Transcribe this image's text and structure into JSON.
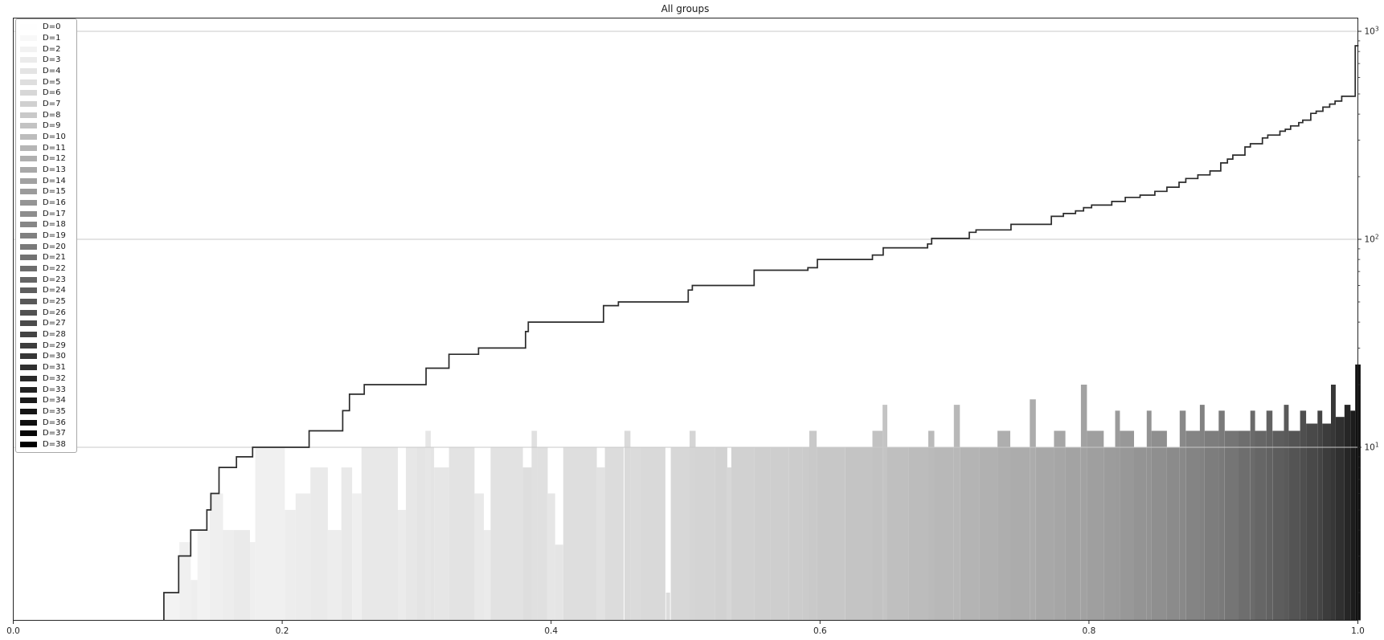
{
  "chart": {
    "title": "All groups"
  },
  "chart_data": {
    "type": "line+bar",
    "title": "All groups",
    "x_axis": {
      "range": [
        0.0,
        1.0
      ],
      "tick_labels": [
        "0.0",
        "0.2",
        "0.4",
        "0.6",
        "0.8",
        "1.0"
      ],
      "tick_values": [
        0.0,
        0.2,
        0.4,
        0.6,
        0.8,
        1.0
      ]
    },
    "y_axis": {
      "scale": "log",
      "side": "right",
      "major_tick_base": "10",
      "major_ticks": [
        {
          "value": 1000,
          "exp": "3"
        },
        {
          "value": 100,
          "exp": "2"
        },
        {
          "value": 10,
          "exp": "1"
        }
      ],
      "minor_tick_values": [
        2,
        3,
        4,
        5,
        6,
        7,
        8,
        9,
        20,
        30,
        40,
        50,
        60,
        70,
        80,
        90,
        200,
        300,
        400,
        500,
        600,
        700,
        800,
        900
      ],
      "range_approx": [
        1.48,
        1170
      ]
    },
    "grid": {
      "on": true,
      "values": [
        10,
        100,
        1000
      ],
      "color": "#c9c9c9"
    },
    "curve": {
      "name": "cumulative-count-step-line",
      "color": "#2b2b2b",
      "steps": [
        [
          0.112,
          2
        ],
        [
          0.123,
          3
        ],
        [
          0.132,
          4
        ],
        [
          0.144,
          5
        ],
        [
          0.147,
          6
        ],
        [
          0.153,
          8
        ],
        [
          0.166,
          9
        ],
        [
          0.178,
          10
        ],
        [
          0.22,
          12
        ],
        [
          0.245,
          15
        ],
        [
          0.25,
          18
        ],
        [
          0.261,
          20
        ],
        [
          0.307,
          24
        ],
        [
          0.324,
          28
        ],
        [
          0.346,
          30
        ],
        [
          0.381,
          36
        ],
        [
          0.383,
          40
        ],
        [
          0.439,
          48
        ],
        [
          0.45,
          50
        ],
        [
          0.502,
          57
        ],
        [
          0.505,
          60
        ],
        [
          0.551,
          71
        ],
        [
          0.591,
          73
        ],
        [
          0.598,
          80
        ],
        [
          0.639,
          84
        ],
        [
          0.647,
          91
        ],
        [
          0.68,
          95
        ],
        [
          0.683,
          101
        ],
        [
          0.711,
          108
        ],
        [
          0.716,
          111
        ],
        [
          0.742,
          118
        ],
        [
          0.772,
          129
        ],
        [
          0.781,
          133
        ],
        [
          0.79,
          137
        ],
        [
          0.796,
          142
        ],
        [
          0.802,
          146
        ],
        [
          0.817,
          152
        ],
        [
          0.827,
          159
        ],
        [
          0.838,
          163
        ],
        [
          0.849,
          170
        ],
        [
          0.858,
          178
        ],
        [
          0.867,
          188
        ],
        [
          0.872,
          196
        ],
        [
          0.881,
          204
        ],
        [
          0.89,
          213
        ],
        [
          0.898,
          233
        ],
        [
          0.903,
          243
        ],
        [
          0.907,
          254
        ],
        [
          0.916,
          278
        ],
        [
          0.92,
          288
        ],
        [
          0.929,
          307
        ],
        [
          0.933,
          317
        ],
        [
          0.942,
          331
        ],
        [
          0.946,
          338
        ],
        [
          0.95,
          351
        ],
        [
          0.956,
          364
        ],
        [
          0.959,
          374
        ],
        [
          0.965,
          403
        ],
        [
          0.969,
          413
        ],
        [
          0.974,
          432
        ],
        [
          0.979,
          447
        ],
        [
          0.983,
          462
        ],
        [
          0.988,
          487
        ],
        [
          0.998,
          852
        ],
        [
          1.0,
          860
        ]
      ]
    },
    "bars": {
      "columns": [
        "x",
        "width",
        "count",
        "gray"
      ],
      "rows": [
        [
          0.112,
          0.0115,
          2,
          243
        ],
        [
          0.1235,
          0.0085,
          3.5,
          240
        ],
        [
          0.132,
          0.005,
          2.3,
          238
        ],
        [
          0.137,
          0.009,
          4,
          242
        ],
        [
          0.146,
          0.01,
          6,
          239
        ],
        [
          0.156,
          0.008,
          4,
          237
        ],
        [
          0.164,
          0.012,
          4,
          234
        ],
        [
          0.176,
          0.004,
          3.5,
          239
        ],
        [
          0.18,
          0.022,
          10,
          240
        ],
        [
          0.202,
          0.008,
          5,
          237
        ],
        [
          0.21,
          0.011,
          6,
          236
        ],
        [
          0.221,
          0.013,
          8,
          234
        ],
        [
          0.234,
          0.01,
          4,
          237
        ],
        [
          0.244,
          0.008,
          8,
          233
        ],
        [
          0.252,
          0.007,
          6,
          239
        ],
        [
          0.259,
          0.027,
          10,
          232
        ],
        [
          0.286,
          0.006,
          5,
          235
        ],
        [
          0.292,
          0.008,
          10,
          231
        ],
        [
          0.3,
          0.013,
          10,
          228
        ],
        [
          0.3065,
          0.004,
          12,
          230
        ],
        [
          0.313,
          0.011,
          8,
          230
        ],
        [
          0.324,
          0.019,
          10,
          227
        ],
        [
          0.343,
          0.007,
          6,
          233
        ],
        [
          0.35,
          0.005,
          4,
          235
        ],
        [
          0.355,
          0.024,
          10,
          226
        ],
        [
          0.379,
          0.007,
          8,
          222
        ],
        [
          0.3855,
          0.004,
          12,
          224
        ],
        [
          0.3895,
          0.008,
          10,
          224
        ],
        [
          0.397,
          0.006,
          6,
          230
        ],
        [
          0.403,
          0.006,
          3.4,
          229
        ],
        [
          0.409,
          0.025,
          10,
          222
        ],
        [
          0.434,
          0.006,
          8,
          226
        ],
        [
          0.44,
          0.014,
          10,
          220
        ],
        [
          0.4545,
          0.0045,
          12,
          218
        ],
        [
          0.459,
          0.007,
          10,
          219
        ],
        [
          0.466,
          0.019,
          10,
          217
        ],
        [
          0.4855,
          0.003,
          2,
          220
        ],
        [
          0.489,
          0.014,
          10,
          215
        ],
        [
          0.503,
          0.0045,
          12,
          213
        ],
        [
          0.5075,
          0.0145,
          10,
          212
        ],
        [
          0.522,
          0.009,
          10,
          210
        ],
        [
          0.531,
          0.003,
          8,
          214
        ],
        [
          0.534,
          0.017,
          10,
          209
        ],
        [
          0.551,
          0.012,
          10,
          207
        ],
        [
          0.563,
          0.014,
          10,
          206
        ],
        [
          0.577,
          0.01,
          10,
          204
        ],
        [
          0.587,
          0.005,
          10,
          203
        ],
        [
          0.592,
          0.0055,
          12,
          201
        ],
        [
          0.5975,
          0.021,
          10,
          199
        ],
        [
          0.6185,
          0.0205,
          10,
          196
        ],
        [
          0.639,
          0.0075,
          12,
          194
        ],
        [
          0.6465,
          0.0035,
          16,
          196
        ],
        [
          0.65,
          0.016,
          10,
          191
        ],
        [
          0.666,
          0.0145,
          10,
          188
        ],
        [
          0.6805,
          0.0045,
          12,
          186
        ],
        [
          0.685,
          0.0145,
          10,
          184
        ],
        [
          0.6995,
          0.0045,
          16,
          184
        ],
        [
          0.704,
          0.0145,
          10,
          180
        ],
        [
          0.7185,
          0.0135,
          10,
          177
        ],
        [
          0.732,
          0.0095,
          12,
          174
        ],
        [
          0.7415,
          0.0145,
          10,
          172
        ],
        [
          0.756,
          0.0045,
          17,
          172
        ],
        [
          0.7605,
          0.0135,
          10,
          168
        ],
        [
          0.774,
          0.0085,
          12,
          166
        ],
        [
          0.7825,
          0.0115,
          10,
          163
        ],
        [
          0.794,
          0.0045,
          20,
          162
        ],
        [
          0.7985,
          0.0125,
          12,
          159
        ],
        [
          0.811,
          0.0085,
          10,
          156
        ],
        [
          0.8195,
          0.0035,
          15,
          155
        ],
        [
          0.823,
          0.0105,
          12,
          152
        ],
        [
          0.8335,
          0.0095,
          10,
          148
        ],
        [
          0.843,
          0.0035,
          15,
          147
        ],
        [
          0.8465,
          0.0115,
          12,
          143
        ],
        [
          0.858,
          0.0095,
          10,
          139
        ],
        [
          0.8675,
          0.0045,
          15,
          137
        ],
        [
          0.872,
          0.0105,
          12,
          132
        ],
        [
          0.8825,
          0.0035,
          16,
          130
        ],
        [
          0.886,
          0.0105,
          12,
          125
        ],
        [
          0.8965,
          0.0045,
          15,
          122
        ],
        [
          0.901,
          0.0105,
          12,
          117
        ],
        [
          0.9115,
          0.0085,
          12,
          110
        ],
        [
          0.92,
          0.0035,
          15,
          107
        ],
        [
          0.9235,
          0.0085,
          12,
          102
        ],
        [
          0.932,
          0.0045,
          15,
          98
        ],
        [
          0.9365,
          0.0085,
          12,
          93
        ],
        [
          0.945,
          0.0035,
          16,
          90
        ],
        [
          0.9485,
          0.0085,
          12,
          84
        ],
        [
          0.957,
          0.0045,
          15,
          79
        ],
        [
          0.9615,
          0.0085,
          13,
          73
        ],
        [
          0.97,
          0.0035,
          15,
          68
        ],
        [
          0.9735,
          0.0065,
          13,
          60
        ],
        [
          0.98,
          0.0035,
          20,
          55
        ],
        [
          0.9835,
          0.0065,
          14,
          48
        ],
        [
          0.99,
          0.0045,
          16,
          38
        ],
        [
          0.9945,
          0.0035,
          15,
          28
        ],
        [
          0.998,
          0.004,
          25,
          18
        ]
      ]
    },
    "legend_entries": [
      {
        "label": "D=0",
        "color": "#fefefe"
      },
      {
        "label": "D=1",
        "color": "#f8f8f8"
      },
      {
        "label": "D=2",
        "color": "#f2f2f2"
      },
      {
        "label": "D=3",
        "color": "#ebebeb"
      },
      {
        "label": "D=4",
        "color": "#e4e4e4"
      },
      {
        "label": "D=5",
        "color": "#dedede"
      },
      {
        "label": "D=6",
        "color": "#d7d7d7"
      },
      {
        "label": "D=7",
        "color": "#d0d0d0"
      },
      {
        "label": "D=8",
        "color": "#c9c9c9"
      },
      {
        "label": "D=9",
        "color": "#c3c3c3"
      },
      {
        "label": "D=10",
        "color": "#bcbcbc"
      },
      {
        "label": "D=11",
        "color": "#b5b5b5"
      },
      {
        "label": "D=12",
        "color": "#afafaf"
      },
      {
        "label": "D=13",
        "color": "#a8a8a8"
      },
      {
        "label": "D=14",
        "color": "#a1a1a1"
      },
      {
        "label": "D=15",
        "color": "#9b9b9b"
      },
      {
        "label": "D=16",
        "color": "#949494"
      },
      {
        "label": "D=17",
        "color": "#8d8d8d"
      },
      {
        "label": "D=18",
        "color": "#868686"
      },
      {
        "label": "D=19",
        "color": "#808080"
      },
      {
        "label": "D=20",
        "color": "#797979"
      },
      {
        "label": "D=21",
        "color": "#727272"
      },
      {
        "label": "D=22",
        "color": "#6c6c6c"
      },
      {
        "label": "D=23",
        "color": "#656565"
      },
      {
        "label": "D=24",
        "color": "#5e5e5e"
      },
      {
        "label": "D=25",
        "color": "#585858"
      },
      {
        "label": "D=26",
        "color": "#515151"
      },
      {
        "label": "D=27",
        "color": "#4a4a4a"
      },
      {
        "label": "D=28",
        "color": "#434343"
      },
      {
        "label": "D=29",
        "color": "#3d3d3d"
      },
      {
        "label": "D=30",
        "color": "#363636"
      },
      {
        "label": "D=31",
        "color": "#2f2f2f"
      },
      {
        "label": "D=32",
        "color": "#292929"
      },
      {
        "label": "D=33",
        "color": "#222222"
      },
      {
        "label": "D=34",
        "color": "#1b1b1b"
      },
      {
        "label": "D=35",
        "color": "#151515"
      },
      {
        "label": "D=36",
        "color": "#0e0e0e"
      },
      {
        "label": "D=37",
        "color": "#070707"
      },
      {
        "label": "D=38",
        "color": "#000000"
      }
    ],
    "colors": {
      "spine": "#262626",
      "tick_text": "#262626",
      "grid": "#c9c9c9",
      "curve": "#2b2b2b",
      "background": "#ffffff"
    }
  }
}
